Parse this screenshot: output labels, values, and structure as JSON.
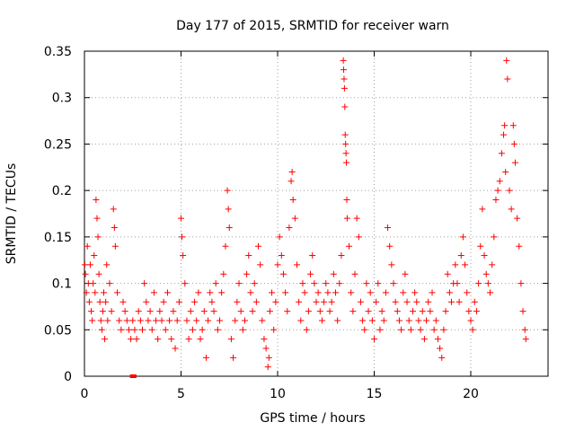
{
  "chart_data": {
    "type": "scatter",
    "title": "Day 177 of 2015, SRMTID for receiver warn",
    "xlabel": "GPS time / hours",
    "ylabel": "SRMTID / TECUs",
    "xlim": [
      0,
      24
    ],
    "ylim": [
      0,
      0.35
    ],
    "x_ticks": [
      0,
      5,
      10,
      15,
      20
    ],
    "x_tick_labels": [
      "0",
      "5",
      "10",
      "15",
      "20"
    ],
    "y_ticks": [
      0,
      0.05,
      0.1,
      0.15,
      0.2,
      0.25,
      0.3,
      0.35
    ],
    "y_tick_labels": [
      "0",
      "0.05",
      "0.1",
      "0.15",
      "0.2",
      "0.25",
      "0.3",
      "0.35"
    ],
    "grid": true,
    "marker": "+",
    "series": [
      {
        "name": "SRMTID",
        "color": "#ff0000",
        "points": [
          [
            0.02,
            0.12
          ],
          [
            0.05,
            0.11
          ],
          [
            0.1,
            0.09
          ],
          [
            0.15,
            0.14
          ],
          [
            0.2,
            0.1
          ],
          [
            0.25,
            0.08
          ],
          [
            0.3,
            0.12
          ],
          [
            0.35,
            0.07
          ],
          [
            0.4,
            0.06
          ],
          [
            0.45,
            0.1
          ],
          [
            0.5,
            0.13
          ],
          [
            0.55,
            0.09
          ],
          [
            0.6,
            0.19
          ],
          [
            0.65,
            0.17
          ],
          [
            0.7,
            0.15
          ],
          [
            0.75,
            0.11
          ],
          [
            0.8,
            0.08
          ],
          [
            0.85,
            0.06
          ],
          [
            0.9,
            0.05
          ],
          [
            0.95,
            0.07
          ],
          [
            1.0,
            0.09
          ],
          [
            1.05,
            0.04
          ],
          [
            1.1,
            0.08
          ],
          [
            1.15,
            0.12
          ],
          [
            1.2,
            0.06
          ],
          [
            1.3,
            0.1
          ],
          [
            1.4,
            0.07
          ],
          [
            1.5,
            0.18
          ],
          [
            1.55,
            0.16
          ],
          [
            1.6,
            0.14
          ],
          [
            1.7,
            0.09
          ],
          [
            1.8,
            0.06
          ],
          [
            1.9,
            0.05
          ],
          [
            2.0,
            0.08
          ],
          [
            2.1,
            0.07
          ],
          [
            2.2,
            0.06
          ],
          [
            2.3,
            0.05
          ],
          [
            2.4,
            0.04
          ],
          [
            2.5,
            0.06
          ],
          [
            2.6,
            0.05
          ],
          [
            2.7,
            0.04
          ],
          [
            2.8,
            0.07
          ],
          [
            2.9,
            0.06
          ],
          [
            3.0,
            0.05
          ],
          [
            3.1,
            0.1
          ],
          [
            3.2,
            0.08
          ],
          [
            3.3,
            0.06
          ],
          [
            3.4,
            0.07
          ],
          [
            3.5,
            0.05
          ],
          [
            3.6,
            0.09
          ],
          [
            3.7,
            0.06
          ],
          [
            3.8,
            0.04
          ],
          [
            3.9,
            0.07
          ],
          [
            4.0,
            0.06
          ],
          [
            4.1,
            0.08
          ],
          [
            4.2,
            0.05
          ],
          [
            4.3,
            0.09
          ],
          [
            4.4,
            0.06
          ],
          [
            4.5,
            0.04
          ],
          [
            4.6,
            0.07
          ],
          [
            4.7,
            0.03
          ],
          [
            4.8,
            0.06
          ],
          [
            4.9,
            0.08
          ],
          [
            5.0,
            0.17
          ],
          [
            5.05,
            0.15
          ],
          [
            5.1,
            0.13
          ],
          [
            5.2,
            0.1
          ],
          [
            5.3,
            0.06
          ],
          [
            5.4,
            0.04
          ],
          [
            5.5,
            0.07
          ],
          [
            5.6,
            0.05
          ],
          [
            5.7,
            0.08
          ],
          [
            5.8,
            0.06
          ],
          [
            5.9,
            0.09
          ],
          [
            6.0,
            0.04
          ],
          [
            6.1,
            0.05
          ],
          [
            6.2,
            0.07
          ],
          [
            6.3,
            0.02
          ],
          [
            6.4,
            0.06
          ],
          [
            6.5,
            0.09
          ],
          [
            6.6,
            0.08
          ],
          [
            6.7,
            0.07
          ],
          [
            6.8,
            0.1
          ],
          [
            6.9,
            0.05
          ],
          [
            7.0,
            0.06
          ],
          [
            7.1,
            0.09
          ],
          [
            7.2,
            0.11
          ],
          [
            7.3,
            0.14
          ],
          [
            7.4,
            0.2
          ],
          [
            7.45,
            0.18
          ],
          [
            7.5,
            0.16
          ],
          [
            7.6,
            0.04
          ],
          [
            7.7,
            0.02
          ],
          [
            7.8,
            0.06
          ],
          [
            7.9,
            0.08
          ],
          [
            8.0,
            0.1
          ],
          [
            8.1,
            0.07
          ],
          [
            8.2,
            0.05
          ],
          [
            8.3,
            0.06
          ],
          [
            8.4,
            0.11
          ],
          [
            8.5,
            0.13
          ],
          [
            8.6,
            0.09
          ],
          [
            8.7,
            0.07
          ],
          [
            8.8,
            0.1
          ],
          [
            8.9,
            0.08
          ],
          [
            9.0,
            0.14
          ],
          [
            9.1,
            0.12
          ],
          [
            9.2,
            0.06
          ],
          [
            9.3,
            0.04
          ],
          [
            9.4,
            0.03
          ],
          [
            9.5,
            0.01
          ],
          [
            9.55,
            0.02
          ],
          [
            9.6,
            0.07
          ],
          [
            9.7,
            0.09
          ],
          [
            9.8,
            0.05
          ],
          [
            9.9,
            0.08
          ],
          [
            10.0,
            0.12
          ],
          [
            10.1,
            0.15
          ],
          [
            10.2,
            0.13
          ],
          [
            10.3,
            0.11
          ],
          [
            10.4,
            0.09
          ],
          [
            10.5,
            0.07
          ],
          [
            10.6,
            0.16
          ],
          [
            10.7,
            0.21
          ],
          [
            10.75,
            0.22
          ],
          [
            10.8,
            0.19
          ],
          [
            10.9,
            0.17
          ],
          [
            11.0,
            0.12
          ],
          [
            11.1,
            0.08
          ],
          [
            11.2,
            0.06
          ],
          [
            11.3,
            0.1
          ],
          [
            11.4,
            0.09
          ],
          [
            11.5,
            0.05
          ],
          [
            11.6,
            0.07
          ],
          [
            11.7,
            0.11
          ],
          [
            11.8,
            0.13
          ],
          [
            11.9,
            0.1
          ],
          [
            12.0,
            0.08
          ],
          [
            12.1,
            0.09
          ],
          [
            12.2,
            0.07
          ],
          [
            12.3,
            0.06
          ],
          [
            12.4,
            0.08
          ],
          [
            12.5,
            0.1
          ],
          [
            12.6,
            0.09
          ],
          [
            12.7,
            0.07
          ],
          [
            12.8,
            0.08
          ],
          [
            12.9,
            0.11
          ],
          [
            13.0,
            0.09
          ],
          [
            13.1,
            0.06
          ],
          [
            13.2,
            0.1
          ],
          [
            13.3,
            0.13
          ],
          [
            13.4,
            0.34
          ],
          [
            13.42,
            0.33
          ],
          [
            13.44,
            0.32
          ],
          [
            13.46,
            0.31
          ],
          [
            13.48,
            0.29
          ],
          [
            13.5,
            0.26
          ],
          [
            13.52,
            0.25
          ],
          [
            13.54,
            0.24
          ],
          [
            13.56,
            0.23
          ],
          [
            13.58,
            0.19
          ],
          [
            13.6,
            0.17
          ],
          [
            13.7,
            0.14
          ],
          [
            13.8,
            0.09
          ],
          [
            13.9,
            0.07
          ],
          [
            14.0,
            0.11
          ],
          [
            14.1,
            0.17
          ],
          [
            14.2,
            0.15
          ],
          [
            14.3,
            0.08
          ],
          [
            14.4,
            0.06
          ],
          [
            14.5,
            0.05
          ],
          [
            14.6,
            0.1
          ],
          [
            14.7,
            0.07
          ],
          [
            14.8,
            0.09
          ],
          [
            14.9,
            0.06
          ],
          [
            15.0,
            0.04
          ],
          [
            15.1,
            0.08
          ],
          [
            15.2,
            0.1
          ],
          [
            15.3,
            0.05
          ],
          [
            15.4,
            0.07
          ],
          [
            15.5,
            0.06
          ],
          [
            15.6,
            0.09
          ],
          [
            15.7,
            0.16
          ],
          [
            15.8,
            0.14
          ],
          [
            15.9,
            0.12
          ],
          [
            16.0,
            0.1
          ],
          [
            16.1,
            0.08
          ],
          [
            16.2,
            0.07
          ],
          [
            16.3,
            0.06
          ],
          [
            16.4,
            0.05
          ],
          [
            16.5,
            0.09
          ],
          [
            16.6,
            0.11
          ],
          [
            16.7,
            0.08
          ],
          [
            16.8,
            0.06
          ],
          [
            16.9,
            0.05
          ],
          [
            17.0,
            0.07
          ],
          [
            17.1,
            0.09
          ],
          [
            17.2,
            0.08
          ],
          [
            17.3,
            0.06
          ],
          [
            17.4,
            0.05
          ],
          [
            17.5,
            0.07
          ],
          [
            17.6,
            0.04
          ],
          [
            17.7,
            0.06
          ],
          [
            17.8,
            0.08
          ],
          [
            17.9,
            0.07
          ],
          [
            18.0,
            0.09
          ],
          [
            18.1,
            0.05
          ],
          [
            18.2,
            0.06
          ],
          [
            18.3,
            0.04
          ],
          [
            18.4,
            0.03
          ],
          [
            18.5,
            0.02
          ],
          [
            18.6,
            0.05
          ],
          [
            18.7,
            0.07
          ],
          [
            18.8,
            0.11
          ],
          [
            18.9,
            0.09
          ],
          [
            19.0,
            0.08
          ],
          [
            19.1,
            0.1
          ],
          [
            19.2,
            0.12
          ],
          [
            19.3,
            0.1
          ],
          [
            19.4,
            0.08
          ],
          [
            19.5,
            0.13
          ],
          [
            19.6,
            0.15
          ],
          [
            19.7,
            0.12
          ],
          [
            19.8,
            0.09
          ],
          [
            19.9,
            0.07
          ],
          [
            20.0,
            0.06
          ],
          [
            20.1,
            0.05
          ],
          [
            20.2,
            0.08
          ],
          [
            20.3,
            0.07
          ],
          [
            20.4,
            0.1
          ],
          [
            20.5,
            0.14
          ],
          [
            20.6,
            0.18
          ],
          [
            20.7,
            0.13
          ],
          [
            20.8,
            0.11
          ],
          [
            20.9,
            0.1
          ],
          [
            21.0,
            0.09
          ],
          [
            21.1,
            0.12
          ],
          [
            21.2,
            0.15
          ],
          [
            21.3,
            0.19
          ],
          [
            21.4,
            0.2
          ],
          [
            21.5,
            0.21
          ],
          [
            21.6,
            0.24
          ],
          [
            21.7,
            0.26
          ],
          [
            21.75,
            0.27
          ],
          [
            21.8,
            0.22
          ],
          [
            21.85,
            0.34
          ],
          [
            21.9,
            0.32
          ],
          [
            22.0,
            0.2
          ],
          [
            22.1,
            0.18
          ],
          [
            22.2,
            0.27
          ],
          [
            22.25,
            0.25
          ],
          [
            22.3,
            0.23
          ],
          [
            22.4,
            0.17
          ],
          [
            22.5,
            0.14
          ],
          [
            22.6,
            0.1
          ],
          [
            22.7,
            0.07
          ],
          [
            22.8,
            0.05
          ],
          [
            22.85,
            0.04
          ]
        ]
      }
    ],
    "baseline_points": [
      [
        2.45,
        0.0
      ],
      [
        2.5,
        0.0
      ],
      [
        2.55,
        0.0
      ],
      [
        2.6,
        0.0
      ]
    ]
  }
}
